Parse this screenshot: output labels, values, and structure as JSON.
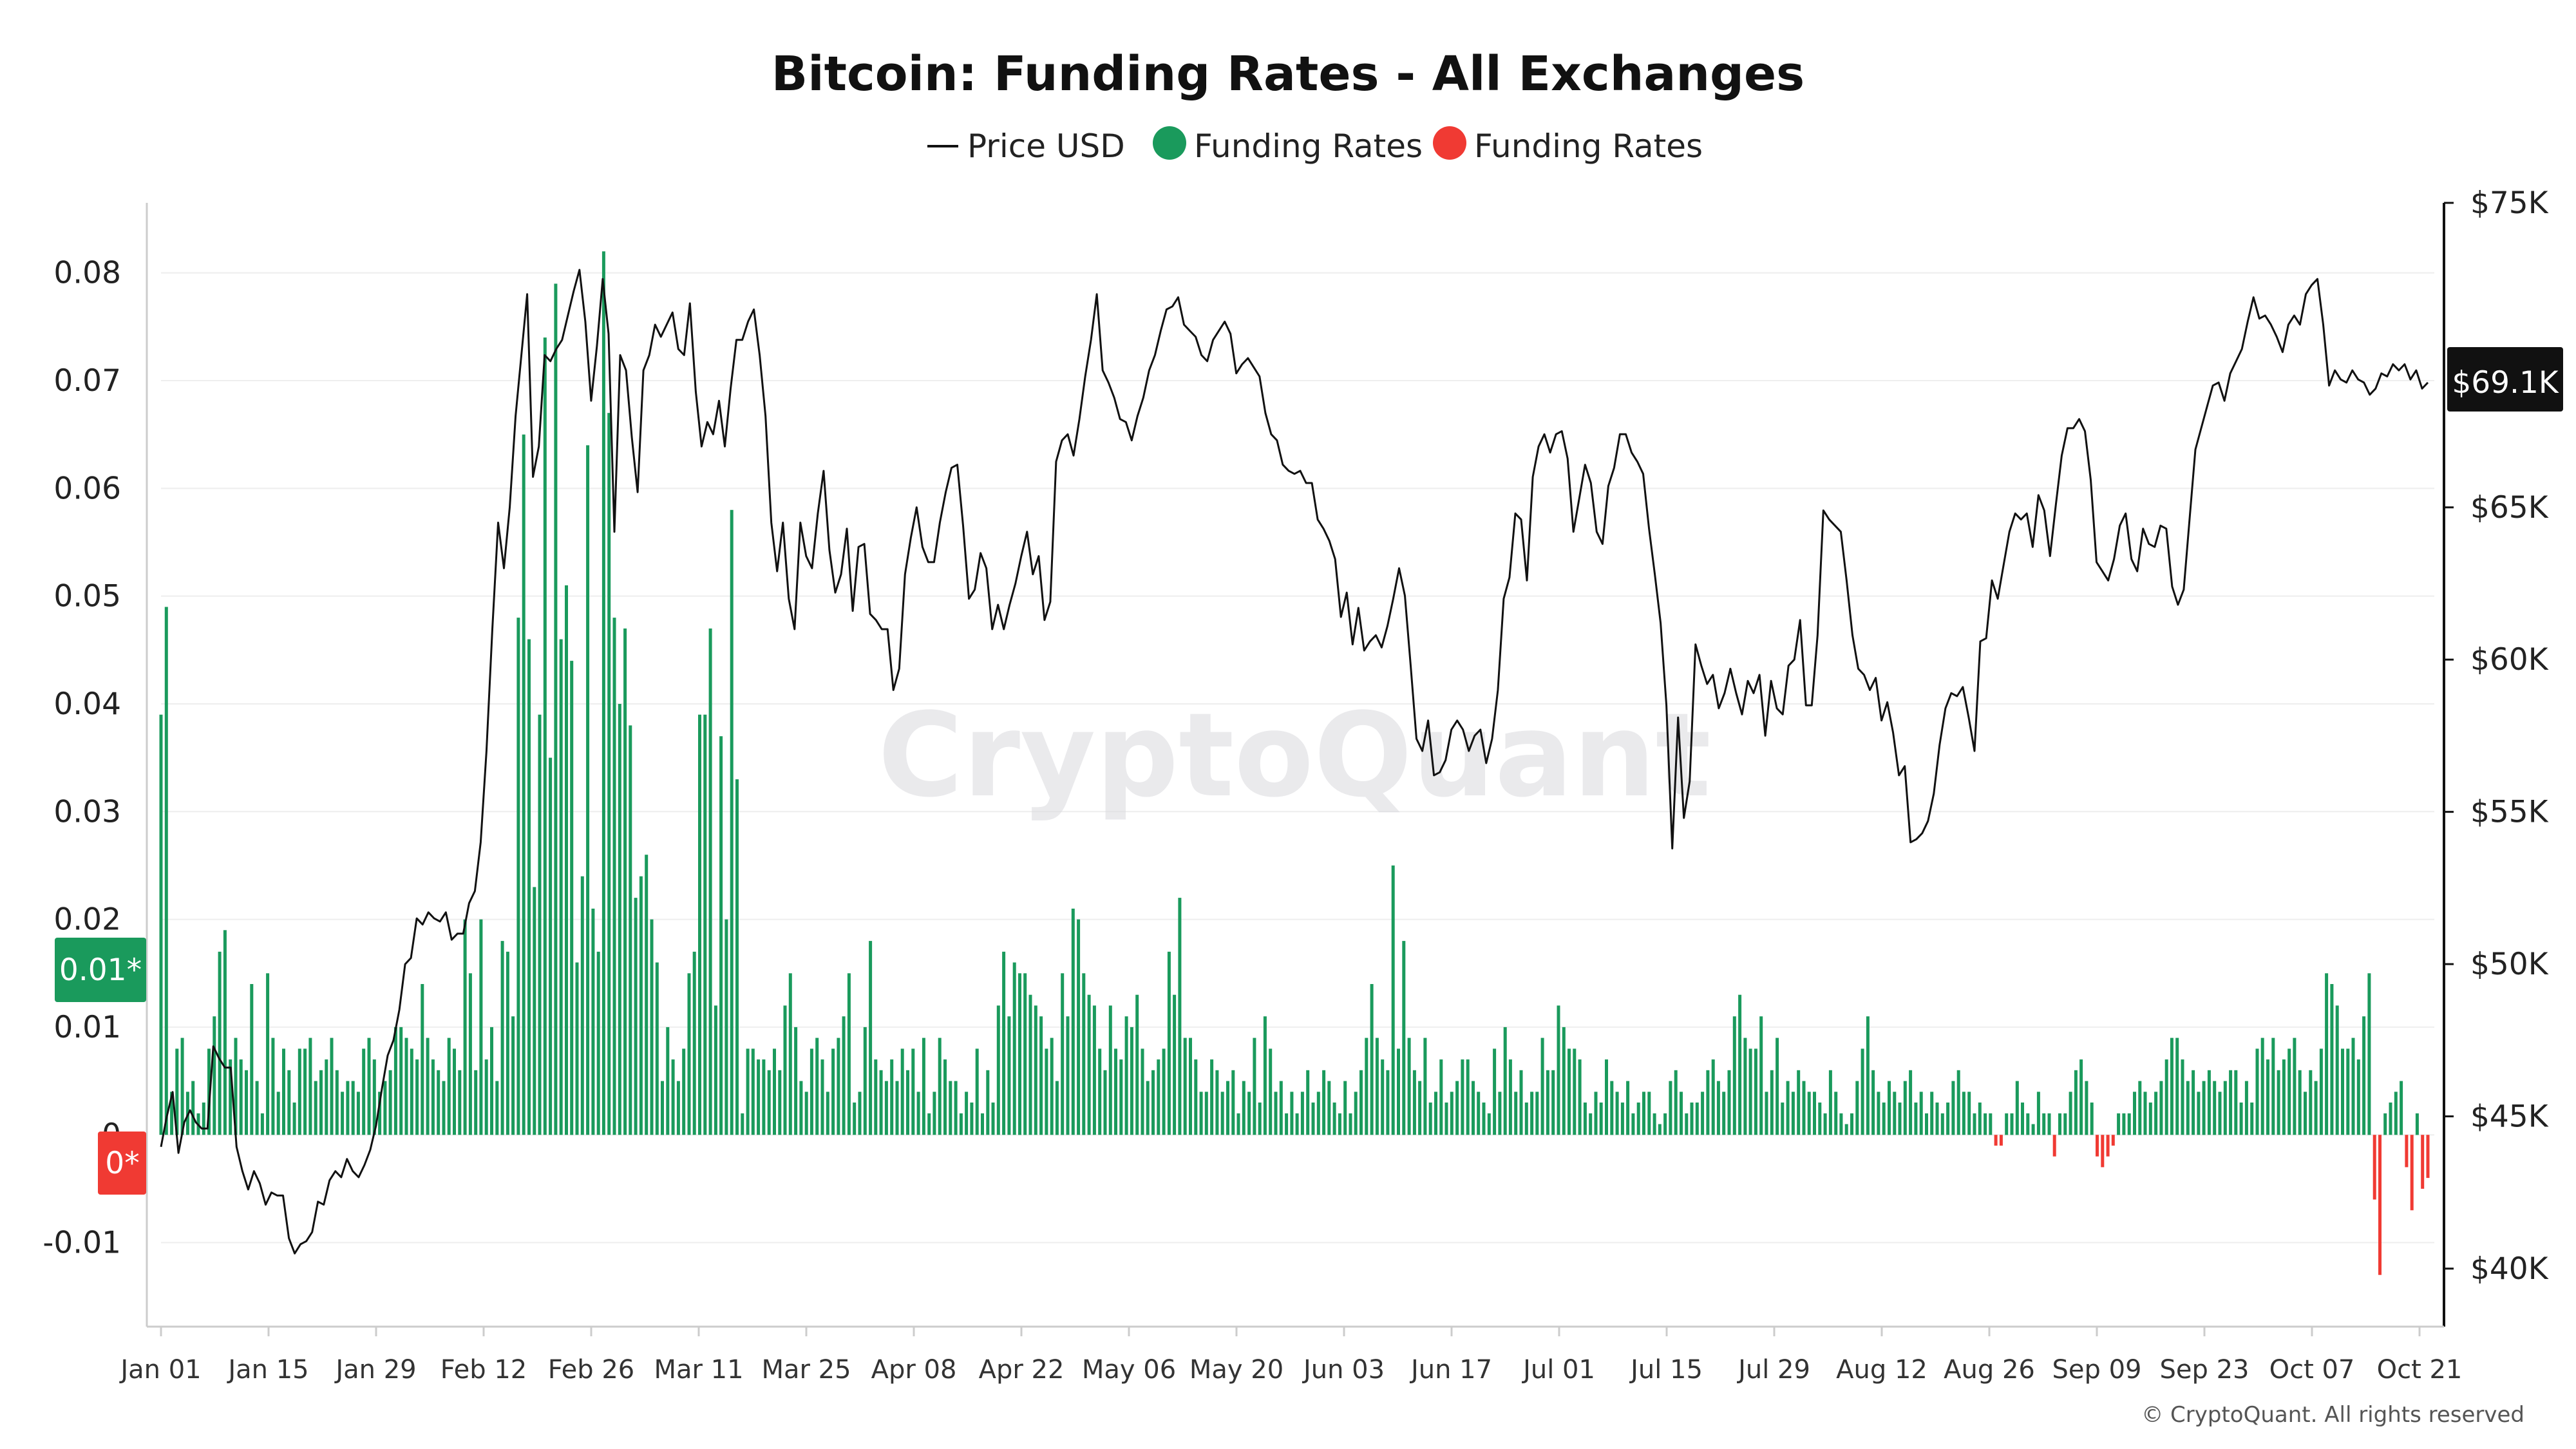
{
  "chart_data": {
    "type": "bar",
    "title": "Bitcoin: Funding Rates - All Exchanges",
    "legend": [
      {
        "name": "Price USD",
        "marker": "line",
        "color": "#111111"
      },
      {
        "name": "Funding Rates",
        "marker": "dot",
        "color": "#1a9a5c"
      },
      {
        "name": "Funding Rates",
        "marker": "dot",
        "color": "#f03a33"
      }
    ],
    "legend_placement": "top-center",
    "grid": true,
    "x_tick_labels": [
      "Jan 01",
      "Jan 15",
      "Jan 29",
      "Feb 12",
      "Feb 26",
      "Mar 11",
      "Mar 25",
      "Apr 08",
      "Apr 22",
      "May 06",
      "May 20",
      "Jun 03",
      "Jun 17",
      "Jul 01",
      "Jul 15",
      "Jul 29",
      "Aug 12",
      "Aug 26",
      "Sep 09",
      "Sep 23",
      "Oct 07",
      "Oct 21"
    ],
    "y_left": {
      "ticks": [
        -0.01,
        0,
        0.01,
        0.02,
        0.03,
        0.04,
        0.05,
        0.06,
        0.07,
        0.08
      ],
      "tick_labels": [
        "-0.01",
        "0",
        "0.01",
        "0.02",
        "0.03",
        "0.04",
        "0.05",
        "0.06",
        "0.07",
        "0.08"
      ],
      "range": [
        -0.0175,
        0.0865
      ]
    },
    "y_right": {
      "ticks": [
        40000,
        45000,
        50000,
        55000,
        60000,
        65000,
        75000
      ],
      "tick_labels": [
        "$40K",
        "$45K",
        "$50K",
        "$55K",
        "$60K",
        "$65K",
        "$75K"
      ],
      "range": [
        38200,
        75000
      ]
    },
    "current_badges": {
      "price": "$69.1K",
      "funding_positive": "0.01*",
      "funding_negative": "0*"
    },
    "colors": {
      "positive": "#1a9a5c",
      "negative": "#f03a33",
      "price_line": "#111111",
      "price_badge": "#111111"
    },
    "funding_rates": [
      0.039,
      0.049,
      0.004,
      0.008,
      0.009,
      0.004,
      0.005,
      0.002,
      0.003,
      0.008,
      0.011,
      0.017,
      0.019,
      0.007,
      0.009,
      0.007,
      0.006,
      0.014,
      0.005,
      0.002,
      0.015,
      0.009,
      0.004,
      0.008,
      0.006,
      0.003,
      0.008,
      0.008,
      0.009,
      0.005,
      0.006,
      0.007,
      0.009,
      0.006,
      0.004,
      0.005,
      0.005,
      0.004,
      0.008,
      0.009,
      0.007,
      0.004,
      0.005,
      0.006,
      0.01,
      0.01,
      0.009,
      0.008,
      0.007,
      0.014,
      0.009,
      0.007,
      0.006,
      0.005,
      0.009,
      0.008,
      0.006,
      0.02,
      0.015,
      0.006,
      0.02,
      0.007,
      0.01,
      0.005,
      0.018,
      0.017,
      0.011,
      0.048,
      0.065,
      0.046,
      0.023,
      0.039,
      0.074,
      0.035,
      0.079,
      0.046,
      0.051,
      0.044,
      0.016,
      0.024,
      0.064,
      0.021,
      0.017,
      0.082,
      0.067,
      0.048,
      0.04,
      0.047,
      0.038,
      0.022,
      0.024,
      0.026,
      0.02,
      0.016,
      0.005,
      0.01,
      0.007,
      0.005,
      0.008,
      0.015,
      0.017,
      0.039,
      0.039,
      0.047,
      0.012,
      0.037,
      0.02,
      0.058,
      0.033,
      0.002,
      0.008,
      0.008,
      0.007,
      0.007,
      0.006,
      0.008,
      0.006,
      0.012,
      0.015,
      0.01,
      0.005,
      0.004,
      0.008,
      0.009,
      0.007,
      0.004,
      0.008,
      0.009,
      0.011,
      0.015,
      0.003,
      0.004,
      0.01,
      0.018,
      0.007,
      0.006,
      0.005,
      0.007,
      0.005,
      0.008,
      0.006,
      0.008,
      0.004,
      0.009,
      0.002,
      0.004,
      0.009,
      0.007,
      0.005,
      0.005,
      0.002,
      0.004,
      0.003,
      0.008,
      0.002,
      0.006,
      0.003,
      0.012,
      0.017,
      0.011,
      0.016,
      0.015,
      0.015,
      0.013,
      0.012,
      0.011,
      0.008,
      0.009,
      0.005,
      0.015,
      0.011,
      0.021,
      0.02,
      0.015,
      0.013,
      0.012,
      0.008,
      0.006,
      0.012,
      0.008,
      0.007,
      0.011,
      0.01,
      0.013,
      0.008,
      0.005,
      0.006,
      0.007,
      0.008,
      0.017,
      0.013,
      0.022,
      0.009,
      0.009,
      0.007,
      0.004,
      0.004,
      0.007,
      0.006,
      0.004,
      0.005,
      0.006,
      0.002,
      0.005,
      0.004,
      0.009,
      0.003,
      0.011,
      0.008,
      0.004,
      0.005,
      0.002,
      0.004,
      0.002,
      0.004,
      0.006,
      0.003,
      0.004,
      0.006,
      0.005,
      0.003,
      0.002,
      0.005,
      0.002,
      0.004,
      0.006,
      0.009,
      0.014,
      0.009,
      0.007,
      0.006,
      0.025,
      0.008,
      0.018,
      0.009,
      0.006,
      0.005,
      0.009,
      0.003,
      0.004,
      0.007,
      0.003,
      0.004,
      0.005,
      0.007,
      0.007,
      0.005,
      0.004,
      0.003,
      0.002,
      0.008,
      0.004,
      0.01,
      0.007,
      0.004,
      0.006,
      0.003,
      0.004,
      0.004,
      0.009,
      0.006,
      0.006,
      0.012,
      0.01,
      0.008,
      0.008,
      0.007,
      0.003,
      0.002,
      0.004,
      0.003,
      0.007,
      0.005,
      0.004,
      0.003,
      0.005,
      0.002,
      0.003,
      0.004,
      0.004,
      0.002,
      0.001,
      0.002,
      0.005,
      0.006,
      0.004,
      0.002,
      0.003,
      0.003,
      0.004,
      0.006,
      0.007,
      0.005,
      0.004,
      0.006,
      0.011,
      0.013,
      0.009,
      0.008,
      0.008,
      0.011,
      0.004,
      0.006,
      0.009,
      0.003,
      0.005,
      0.004,
      0.006,
      0.005,
      0.004,
      0.004,
      0.003,
      0.002,
      0.006,
      0.004,
      0.002,
      0.001,
      0.002,
      0.005,
      0.008,
      0.011,
      0.006,
      0.004,
      0.003,
      0.005,
      0.004,
      0.003,
      0.005,
      0.006,
      0.003,
      0.004,
      0.002,
      0.004,
      0.003,
      0.002,
      0.003,
      0.005,
      0.006,
      0.004,
      0.004,
      0.002,
      0.003,
      0.002,
      0.002,
      -0.001,
      -0.001,
      0.002,
      0.002,
      0.005,
      0.003,
      0.002,
      0.001,
      0.004,
      0.002,
      0.002,
      -0.002,
      0.002,
      0.002,
      0.004,
      0.006,
      0.007,
      0.005,
      0.003,
      -0.002,
      -0.003,
      -0.002,
      -0.001,
      0.002,
      0.002,
      0.002,
      0.004,
      0.005,
      0.004,
      0.003,
      0.004,
      0.005,
      0.007,
      0.009,
      0.009,
      0.007,
      0.005,
      0.006,
      0.004,
      0.005,
      0.006,
      0.005,
      0.004,
      0.005,
      0.006,
      0.006,
      0.003,
      0.005,
      0.003,
      0.008,
      0.009,
      0.007,
      0.009,
      0.006,
      0.007,
      0.008,
      0.009,
      0.006,
      0.004,
      0.006,
      0.005,
      0.008,
      0.015,
      0.014,
      0.012,
      0.008,
      0.008,
      0.009,
      0.007,
      0.011,
      0.015,
      -0.006,
      -0.013,
      0.002,
      0.003,
      0.004,
      0.005,
      -0.003,
      -0.007,
      0.002,
      -0.005,
      -0.004
    ],
    "price_usd": [
      44000,
      45000,
      45800,
      43800,
      44800,
      45200,
      44800,
      44600,
      44600,
      47300,
      46900,
      46600,
      46600,
      44000,
      43200,
      42600,
      43200,
      42800,
      42100,
      42500,
      42400,
      42400,
      41000,
      40500,
      40800,
      40900,
      41200,
      42200,
      42100,
      42900,
      43200,
      43000,
      43600,
      43200,
      43000,
      43400,
      43900,
      44700,
      45900,
      47000,
      47500,
      48500,
      50000,
      50200,
      51500,
      51300,
      51700,
      51500,
      51400,
      51700,
      50800,
      51000,
      51000,
      52000,
      52400,
      54000,
      57000,
      61000,
      64500,
      63000,
      65000,
      68000,
      70000,
      72000,
      66000,
      67000,
      70000,
      69800,
      70200,
      70500,
      71300,
      72100,
      72800,
      71100,
      68500,
      70300,
      72500,
      70700,
      64200,
      70000,
      69500,
      67300,
      65500,
      69500,
      70000,
      71000,
      70600,
      71000,
      71400,
      70200,
      70000,
      71700,
      68800,
      67000,
      67800,
      67400,
      68500,
      67000,
      68900,
      70500,
      70500,
      71100,
      71500,
      70000,
      68000,
      64500,
      62900,
      64500,
      62000,
      61000,
      64500,
      63400,
      63000,
      64800,
      66200,
      63600,
      62200,
      62800,
      64300,
      61600,
      63700,
      63800,
      61500,
      61300,
      61000,
      61000,
      59000,
      59700,
      62800,
      64000,
      65000,
      63700,
      63200,
      63200,
      64500,
      65500,
      66300,
      66400,
      64400,
      62000,
      62300,
      63500,
      63000,
      61000,
      61800,
      61000,
      61800,
      62500,
      63400,
      64200,
      62800,
      63400,
      61300,
      61900,
      66500,
      67200,
      67400,
      66700,
      67900,
      69300,
      70500,
      72000,
      69500,
      69100,
      68600,
      67900,
      67800,
      67200,
      68000,
      68600,
      69500,
      70000,
      70800,
      71500,
      71600,
      71900,
      71000,
      70800,
      70600,
      70000,
      69800,
      70500,
      70800,
      71100,
      70700,
      69400,
      69700,
      69900,
      69600,
      69300,
      68100,
      67400,
      67200,
      66400,
      66200,
      66100,
      66200,
      65800,
      65800,
      64600,
      64300,
      63900,
      63300,
      61400,
      62200,
      60500,
      61700,
      60300,
      60600,
      60800,
      60400,
      61100,
      62000,
      63000,
      62100,
      59800,
      57400,
      57000,
      58000,
      56200,
      56300,
      56700,
      57700,
      58000,
      57700,
      57000,
      57500,
      57700,
      56600,
      57400,
      59000,
      62000,
      62700,
      64800,
      64600,
      62600,
      66000,
      67000,
      67400,
      66800,
      67400,
      67500,
      66600,
      64200,
      65300,
      66400,
      65800,
      64200,
      63800,
      65700,
      66300,
      67400,
      67400,
      66800,
      66500,
      66100,
      64300,
      62800,
      61200,
      58500,
      53800,
      58100,
      54800,
      56000,
      60500,
      59800,
      59200,
      59500,
      58400,
      58900,
      59700,
      58900,
      58200,
      59300,
      58900,
      59500,
      57500,
      59300,
      58400,
      58200,
      59800,
      60000,
      61300,
      58500,
      58500,
      60800,
      64900,
      64600,
      64400,
      64200,
      62600,
      60800,
      59700,
      59500,
      59000,
      59400,
      58000,
      58600,
      57600,
      56200,
      56500,
      54000,
      54100,
      54300,
      54700,
      55600,
      57200,
      58400,
      58900,
      58800,
      59100,
      58100,
      57000,
      60600,
      60700,
      62600,
      62000,
      63100,
      64200,
      64800,
      64600,
      64800,
      63700,
      65400,
      64900,
      63400,
      65100,
      66700,
      67600,
      67600,
      67900,
      67500,
      65900,
      63200,
      62900,
      62600,
      63300,
      64400,
      64800,
      63300,
      62900,
      64300,
      63800,
      63700,
      64400,
      64300,
      62400,
      61800,
      62300,
      64600,
      66900,
      67600,
      68300,
      69000,
      69100,
      68500,
      69400,
      69800,
      70200,
      71100,
      71900,
      71200,
      71300,
      71000,
      70600,
      70100,
      71000,
      71300,
      71000,
      72000,
      72300,
      72500,
      71000,
      69000,
      69500,
      69200,
      69100,
      69500,
      69200,
      69100,
      68700,
      68900,
      69400,
      69300,
      69700,
      69500,
      69700,
      69200,
      69500,
      68900,
      69100
    ]
  },
  "watermark": "CryptoQuant",
  "copyright": "© CryptoQuant. All rights reserved"
}
